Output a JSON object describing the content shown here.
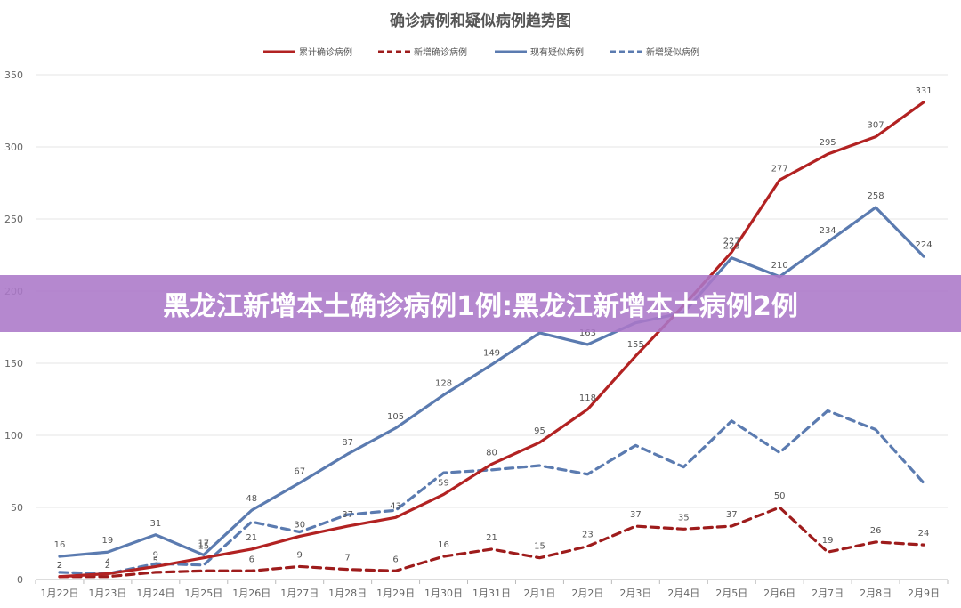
{
  "chart_data": {
    "type": "line",
    "title": "确诊病例和疑似病例趋势图",
    "xlabel": "",
    "ylabel": "",
    "ylim": [
      0,
      350
    ],
    "yticks": [
      0,
      50,
      100,
      150,
      200,
      250,
      300,
      350
    ],
    "grid": true,
    "legend_position": "top",
    "categories": [
      "1月22日",
      "1月23日",
      "1月24日",
      "1月25日",
      "1月26日",
      "1月27日",
      "1月28日",
      "1月29日",
      "1月30日",
      "1月31日",
      "2月1日",
      "2月2日",
      "2月3日",
      "2月4日",
      "2月5日",
      "2月6日",
      "2月7日",
      "2月8日",
      "2月9日"
    ],
    "series": [
      {
        "name": "累计确诊病例",
        "color": "#b22222",
        "dash": false,
        "values": [
          2,
          4,
          9,
          15,
          21,
          30,
          37,
          43,
          59,
          80,
          95,
          118,
          155,
          190,
          227,
          277,
          295,
          307,
          331
        ],
        "labels": [
          "2",
          "4",
          "9",
          "15",
          "21",
          "30",
          "37",
          "43",
          "59",
          "80",
          "95",
          "118",
          "155",
          "",
          "227",
          "277",
          "295",
          "307",
          "331"
        ]
      },
      {
        "name": "新增确诊病例",
        "color": "#9e1c1c",
        "dash": true,
        "values": [
          2,
          2,
          5,
          6,
          6,
          9,
          7,
          6,
          16,
          21,
          15,
          23,
          37,
          35,
          37,
          50,
          19,
          26,
          24
        ],
        "labels": [
          "2",
          "2",
          "5",
          "",
          "6",
          "9",
          "7",
          "6",
          "16",
          "21",
          "15",
          "23",
          "37",
          "35",
          "37",
          "50",
          "19",
          "26",
          "24"
        ]
      },
      {
        "name": "现有疑似病例",
        "color": "#5b7bb0",
        "dash": false,
        "values": [
          16,
          19,
          31,
          17,
          48,
          67,
          87,
          105,
          128,
          149,
          171,
          163,
          178,
          185,
          223,
          210,
          234,
          258,
          224
        ],
        "labels": [
          "16",
          "19",
          "31",
          "17",
          "48",
          "67",
          "87",
          "105",
          "128",
          "149",
          "",
          "163",
          "",
          "",
          "223",
          "210",
          "234",
          "258",
          "224"
        ]
      },
      {
        "name": "新增疑似病例",
        "color": "#5b7bb0",
        "dash": true,
        "values": [
          5,
          4,
          11,
          10,
          40,
          33,
          45,
          48,
          74,
          76,
          79,
          73,
          93,
          78,
          110,
          88,
          117,
          104,
          67
        ],
        "labels": []
      }
    ]
  },
  "banner": {
    "text": "黑龙江新增本土确诊病例1例:黑龙江新增本土病例2例"
  }
}
